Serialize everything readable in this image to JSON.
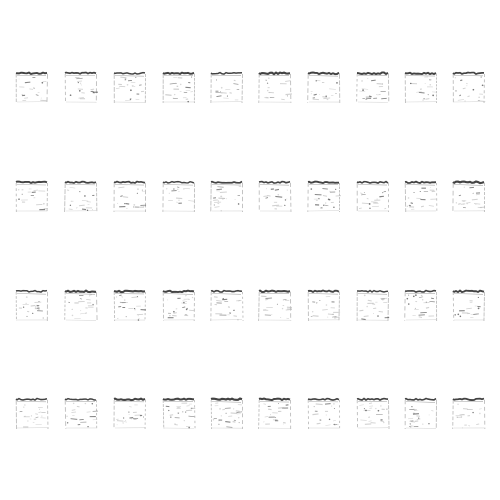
{
  "grid": {
    "rows": 4,
    "columns": 10,
    "thumbnail_count": 40
  },
  "colors": {
    "background": "#ffffff",
    "ink": "#222222",
    "faint": "#bdbdbd"
  },
  "icon": "sparse-square-sketch"
}
